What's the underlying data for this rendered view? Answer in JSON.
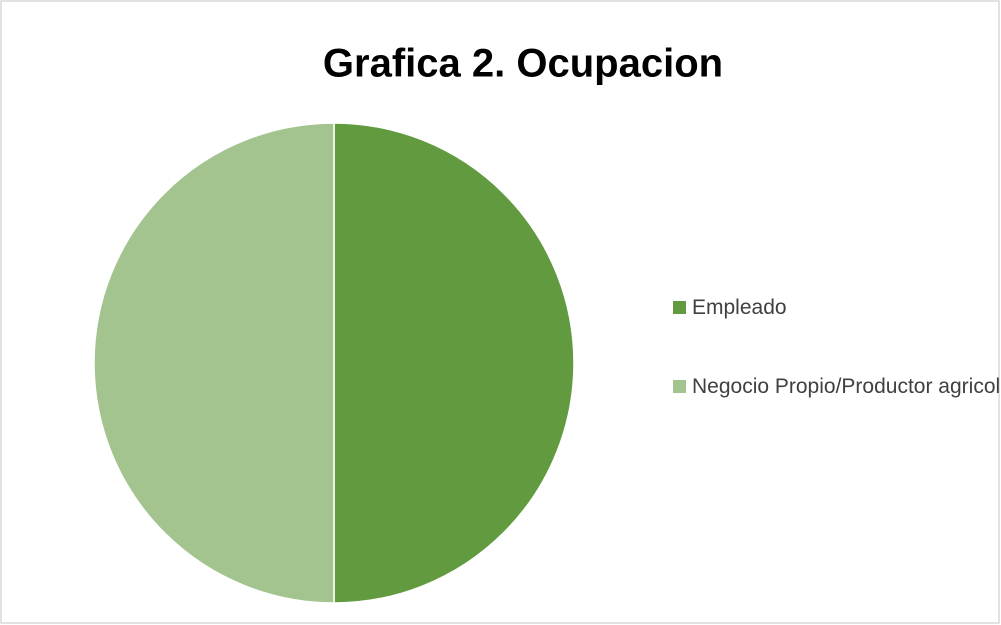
{
  "chart_data": {
    "type": "pie",
    "title": "Grafica 2. Ocupacion",
    "categories": [
      "Empleado",
      "Negocio Propio/Productor agricola"
    ],
    "values": [
      50,
      50
    ],
    "colors": [
      "#629b3f",
      "#a3c48f"
    ],
    "legend": "right"
  }
}
